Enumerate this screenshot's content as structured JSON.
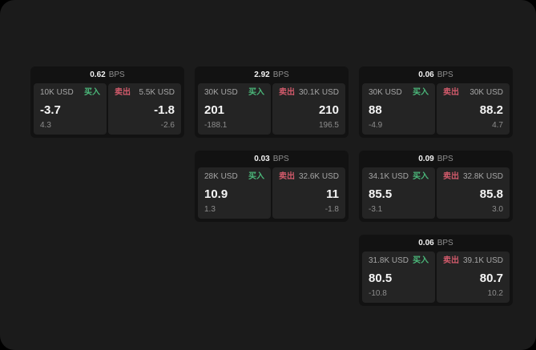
{
  "labels": {
    "bps_unit": "BPS",
    "buy": "买入",
    "sell": "卖出"
  },
  "colors": {
    "screen_bg": "#1b1b1b",
    "card_bg": "#121212",
    "panel_bg": "#242424",
    "buy_green": "#4bb87a",
    "sell_red": "#d15a6b",
    "value_white": "#f5f5f5",
    "label_gray": "#a6a6a6",
    "sub_gray": "#8d8d8d"
  },
  "cards": [
    {
      "col": 1,
      "row": 1,
      "bps": "0.62",
      "buy": {
        "size": "10K USD",
        "value": "-3.7",
        "sub": "4.3"
      },
      "sell": {
        "size": "5.5K USD",
        "value": "-1.8",
        "sub": "-2.6"
      }
    },
    {
      "col": 2,
      "row": 1,
      "bps": "2.92",
      "buy": {
        "size": "30K USD",
        "value": "201",
        "sub": "-188.1"
      },
      "sell": {
        "size": "30.1K USD",
        "value": "210",
        "sub": "196.5"
      }
    },
    {
      "col": 3,
      "row": 1,
      "bps": "0.06",
      "buy": {
        "size": "30K USD",
        "value": "88",
        "sub": "-4.9"
      },
      "sell": {
        "size": "30K USD",
        "value": "88.2",
        "sub": "4.7"
      }
    },
    {
      "col": 2,
      "row": 2,
      "bps": "0.03",
      "buy": {
        "size": "28K USD",
        "value": "10.9",
        "sub": "1.3"
      },
      "sell": {
        "size": "32.6K USD",
        "value": "11",
        "sub": "-1.8"
      }
    },
    {
      "col": 3,
      "row": 2,
      "bps": "0.09",
      "buy": {
        "size": "34.1K USD",
        "value": "85.5",
        "sub": "-3.1"
      },
      "sell": {
        "size": "32.8K USD",
        "value": "85.8",
        "sub": "3.0"
      }
    },
    {
      "col": 3,
      "row": 3,
      "bps": "0.06",
      "buy": {
        "size": "31.8K USD",
        "value": "80.5",
        "sub": "-10.8"
      },
      "sell": {
        "size": "39.1K USD",
        "value": "80.7",
        "sub": "10.2"
      }
    }
  ]
}
